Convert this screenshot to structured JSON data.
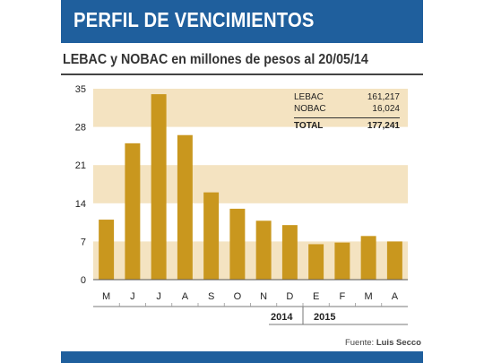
{
  "header": {
    "title": "PERFIL DE VENCIMIENTOS"
  },
  "subtitle": "LEBAC y NOBAC en millones de pesos al 20/05/14",
  "summary": {
    "rows": [
      {
        "label": "LEBAC",
        "value": "161,217"
      },
      {
        "label": "NOBAC",
        "value": "16,024"
      }
    ],
    "total": {
      "label": "TOTAL",
      "value": "177,241"
    }
  },
  "years": [
    "2014",
    "2015"
  ],
  "source": {
    "label": "Fuente:",
    "author": "Luis Secco"
  },
  "colors": {
    "bar": "#c9971e",
    "band": "#f4e3c1",
    "header": "#1f5f9d"
  },
  "chart_data": {
    "type": "bar",
    "categories": [
      "M",
      "J",
      "J",
      "A",
      "S",
      "O",
      "N",
      "D",
      "E",
      "F",
      "M",
      "A"
    ],
    "values": [
      11,
      25,
      34,
      26.5,
      16,
      13,
      10.8,
      10,
      6.5,
      6.8,
      8,
      7
    ],
    "yticks": [
      0,
      7,
      14,
      21,
      28,
      35
    ],
    "ylim": [
      0,
      35
    ],
    "shaded_bands": [
      [
        28,
        35
      ],
      [
        14,
        21
      ],
      [
        0,
        7
      ]
    ]
  }
}
